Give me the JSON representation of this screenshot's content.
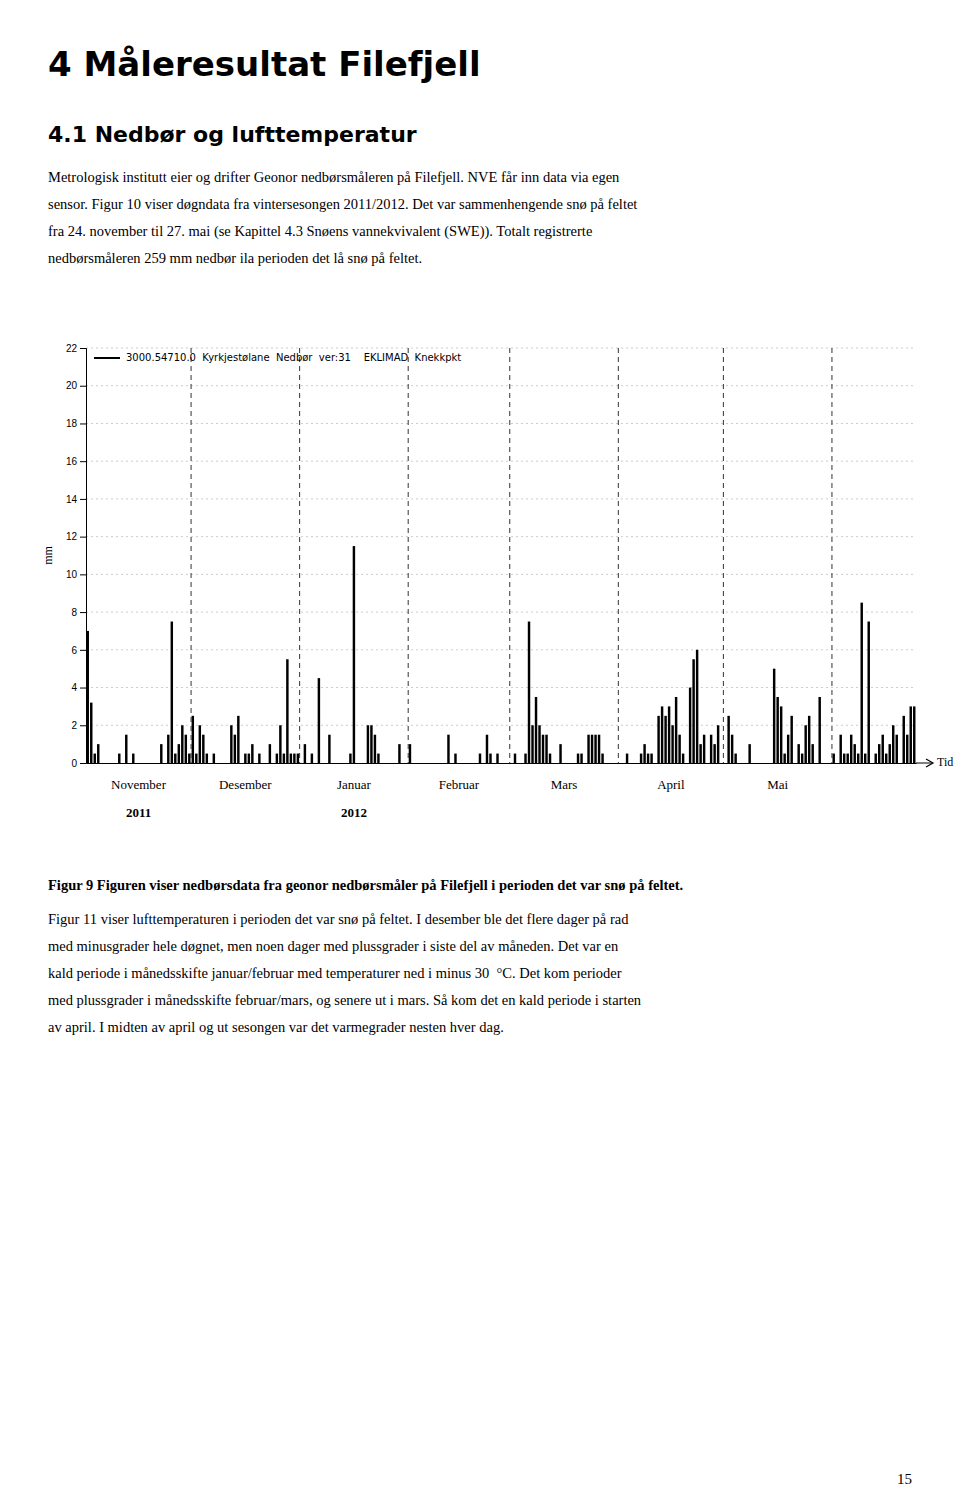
{
  "title": "4 Måleresultat Filefjell",
  "subtitle": "4.1 Nedbør og lufttemperatur",
  "text_before": [
    "Metrologisk institutt eier og drifter Geonor nedbørsmåleren på Filefjell. NVE får inn data via egen",
    "sensor. Figur 10 viser døgndata fra vintersesongen 2011/2012. Det var sammenhengende snø på feltet",
    "fra 24. november til 27. mai (se Kapittel 4.3 Snøens vannekvivalent (SWE)). Totalt registrerte",
    "nedbørsmåleren 259 mm nedbør ila perioden det lå snø på feltet."
  ],
  "caption": "Figur 9 Figuren viser nedbørsdata fra geonor nedbørsmåler på Filefjell i perioden det var snø på feltet.",
  "text_after": [
    "Figur 11 viser lufttemperaturen i perioden det var snø på feltet. I desember ble det flere dager på rad",
    "med minusgrader hele døgnet, men noen dager med plussgrader i siste del av måneden. Det var en",
    "kald periode i månedsskifte januar/februar med temperaturer ned i minus 30  °C. Det kom perioder",
    "med plussgrader i månedsskifte februar/mars, og senere ut i mars. Så kom det en kald periode i starten",
    "av april. I midten av april og ut sesongen var det varmegrader nesten hver dag."
  ],
  "page_number": "15",
  "chart_data": {
    "type": "bar",
    "ylabel": "mm",
    "xlabel": "Tid",
    "ylim": [
      0,
      22
    ],
    "yticks": [
      0,
      2,
      4,
      6,
      8,
      10,
      12,
      14,
      16,
      18,
      20,
      22
    ],
    "grid": true,
    "legend": "upper left",
    "month_labels": [
      "November",
      "Desember",
      "Januar",
      "Februar",
      "Mars",
      "April",
      "Mai"
    ],
    "year_labels": [
      "2011",
      null,
      "2012",
      null,
      null,
      null,
      null
    ],
    "month_boundaries": [
      0,
      30,
      61,
      92,
      121,
      152,
      182,
      213
    ],
    "categories": [
      null,
      null,
      null,
      null,
      null,
      null,
      null,
      null,
      null,
      null,
      null,
      null,
      null,
      null,
      null,
      null,
      null,
      null,
      null,
      null,
      null,
      null,
      null,
      null,
      null,
      null,
      null,
      null,
      null,
      null,
      null,
      null,
      null,
      null,
      null,
      null,
      null,
      null,
      null,
      null,
      null,
      null,
      null,
      null,
      null,
      null,
      null,
      null,
      null,
      null,
      null,
      null,
      null,
      null,
      null,
      null,
      null,
      null,
      null,
      null,
      null,
      null,
      null,
      null,
      null,
      null,
      null,
      null,
      null,
      null,
      null,
      null,
      null,
      null,
      null,
      null,
      null,
      null,
      null,
      null,
      null,
      null,
      null,
      null,
      null,
      null,
      null,
      null,
      null,
      null,
      null,
      null,
      null,
      null,
      null,
      null,
      null,
      null,
      null,
      null,
      null,
      null,
      null,
      null,
      null,
      null,
      null,
      null,
      null,
      null,
      null,
      null,
      null,
      null,
      null,
      null,
      null,
      null,
      null,
      null,
      null,
      null,
      null,
      null,
      null,
      null,
      null,
      null,
      null,
      null,
      null,
      null,
      null,
      null,
      null,
      null,
      null,
      null,
      null,
      null,
      null,
      null,
      null,
      null,
      null,
      null,
      null,
      null,
      null,
      null,
      null,
      null,
      null,
      null,
      null,
      null,
      null,
      null,
      null,
      null,
      null,
      null,
      null,
      null,
      null,
      null,
      null,
      null,
      null,
      null,
      null,
      null,
      null,
      null,
      null,
      null,
      null,
      null,
      null,
      null,
      null,
      null,
      null,
      null,
      null,
      null,
      null,
      null,
      null,
      null,
      null,
      null,
      null,
      null,
      null,
      null,
      null,
      null,
      null,
      null,
      null,
      null,
      null,
      null,
      null,
      null,
      null,
      null,
      null,
      null,
      null,
      null,
      null,
      null,
      null,
      null,
      null,
      null,
      null,
      null,
      null,
      null,
      null,
      null,
      null,
      null,
      null,
      null,
      null,
      null,
      null,
      null,
      null,
      null,
      null,
      null,
      null
    ],
    "series": [
      {
        "name": "3000.54710.0  Kyrkjestølane  Nedbør  ver:31    EKLIMAD  Knekkpkt",
        "color": "#000000",
        "values": [
          7.0,
          3.2,
          0.5,
          1.0,
          0.0,
          0.0,
          0.0,
          0.0,
          0.0,
          0.5,
          0.0,
          1.5,
          0.0,
          0.5,
          0.0,
          0.0,
          0.0,
          0.0,
          0.0,
          0.0,
          0.0,
          1.0,
          0.0,
          1.5,
          7.5,
          0.5,
          1.0,
          2.0,
          1.5,
          0.5,
          2.5,
          0.5,
          2.0,
          1.5,
          0.5,
          0.0,
          0.5,
          0.0,
          0.0,
          0.0,
          0.0,
          2.0,
          1.5,
          2.5,
          0.0,
          0.5,
          0.5,
          1.0,
          0.0,
          0.5,
          0.0,
          0.0,
          1.0,
          0.0,
          0.5,
          2.0,
          0.5,
          5.5,
          0.5,
          0.5,
          0.5,
          0.0,
          1.0,
          0.0,
          0.5,
          0.0,
          4.5,
          0.0,
          0.0,
          1.5,
          0.0,
          0.0,
          0.0,
          0.0,
          0.0,
          0.5,
          11.5,
          0.0,
          0.0,
          0.0,
          2.0,
          2.0,
          1.5,
          0.5,
          0.0,
          0.0,
          0.0,
          0.0,
          0.0,
          1.0,
          0.0,
          0.0,
          1.0,
          0.0,
          0.0,
          0.0,
          0.0,
          0.0,
          0.0,
          0.0,
          0.0,
          0.0,
          0.0,
          1.5,
          0.0,
          0.5,
          0.0,
          0.0,
          0.0,
          0.0,
          0.0,
          0.0,
          0.5,
          0.0,
          1.5,
          0.5,
          0.0,
          0.5,
          0.0,
          0.0,
          0.0,
          0.0,
          0.5,
          0.0,
          0.0,
          0.5,
          7.5,
          2.0,
          3.5,
          2.0,
          1.5,
          1.5,
          0.5,
          0.0,
          0.0,
          1.0,
          0.0,
          0.0,
          0.0,
          0.0,
          0.5,
          0.5,
          0.0,
          1.5,
          1.5,
          1.5,
          1.5,
          0.5,
          0.0,
          0.0,
          0.0,
          0.0,
          0.0,
          0.0,
          0.5,
          0.0,
          0.0,
          0.0,
          0.5,
          1.0,
          0.5,
          0.5,
          0.0,
          2.5,
          3.0,
          2.5,
          3.0,
          2.0,
          3.5,
          1.5,
          0.5,
          0.0,
          4.0,
          5.5,
          6.0,
          1.0,
          1.5,
          0.0,
          1.5,
          1.0,
          2.0,
          0.0,
          0.0,
          2.5,
          1.5,
          0.5,
          0.0,
          0.0,
          0.0,
          1.0,
          0.0,
          0.0,
          0.0,
          0.0,
          0.0,
          0.0,
          5.0,
          3.5,
          3.0,
          0.5,
          1.5,
          2.5,
          0.0,
          1.0,
          0.5,
          2.0,
          2.5,
          1.0,
          0.0,
          3.5,
          0.0,
          0.0,
          0.0,
          0.5,
          0.0,
          1.5,
          0.5,
          0.5,
          1.5,
          1.0,
          0.5,
          8.5,
          0.5,
          7.5,
          0.0,
          0.5,
          1.0,
          1.5,
          0.5,
          1.0,
          2.0,
          1.5,
          0.0,
          2.5,
          1.5,
          3.0,
          3.0
        ]
      }
    ]
  }
}
